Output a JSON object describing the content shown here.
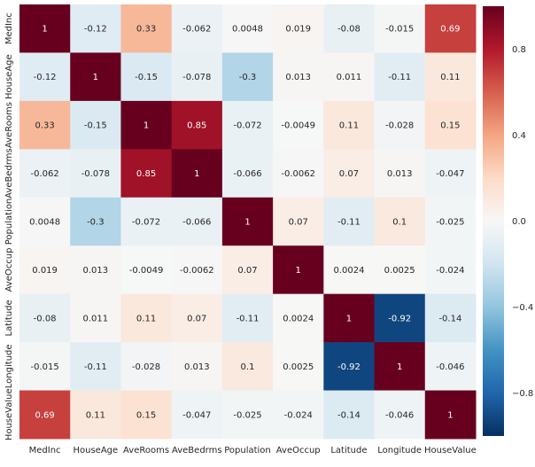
{
  "chart_data": {
    "type": "heatmap",
    "title": "",
    "xlabel": "",
    "ylabel": "",
    "labels": [
      "MedInc",
      "HouseAge",
      "AveRooms",
      "AveBedrms",
      "Population",
      "AveOccup",
      "Latitude",
      "Longitude",
      "HouseValue"
    ],
    "values": [
      [
        1,
        -0.12,
        0.33,
        -0.062,
        0.0048,
        0.019,
        -0.08,
        -0.015,
        0.69
      ],
      [
        -0.12,
        1,
        -0.15,
        -0.078,
        -0.3,
        0.013,
        0.011,
        -0.11,
        0.11
      ],
      [
        0.33,
        -0.15,
        1,
        0.85,
        -0.072,
        -0.0049,
        0.11,
        -0.028,
        0.15
      ],
      [
        -0.062,
        -0.078,
        0.85,
        1,
        -0.066,
        -0.0062,
        0.07,
        0.013,
        -0.047
      ],
      [
        0.0048,
        -0.3,
        -0.072,
        -0.066,
        1,
        0.07,
        -0.11,
        0.1,
        -0.025
      ],
      [
        0.019,
        0.013,
        -0.0049,
        -0.0062,
        0.07,
        1,
        0.0024,
        0.0025,
        -0.024
      ],
      [
        -0.08,
        0.011,
        0.11,
        0.07,
        -0.11,
        0.0024,
        1,
        -0.92,
        -0.14
      ],
      [
        -0.015,
        -0.11,
        -0.028,
        0.013,
        0.1,
        0.0025,
        -0.92,
        1,
        -0.046
      ],
      [
        0.69,
        0.11,
        0.15,
        -0.047,
        -0.025,
        -0.024,
        -0.14,
        -0.046,
        1
      ]
    ],
    "colormap": "RdBu_r",
    "vmin": -1,
    "vmax": 1,
    "colorbar": {
      "ticks": [
        0.8,
        0.4,
        0.0,
        -0.4,
        -0.8
      ],
      "tick_labels": [
        "0.8",
        "0.4",
        "0.0",
        "−0.4",
        "−0.8"
      ],
      "placement": "right"
    },
    "colors": [
      "#053061",
      "#2166ac",
      "#4393c3",
      "#92c5de",
      "#d1e5f0",
      "#f7f7f7",
      "#fddbc7",
      "#f4a582",
      "#d6604d",
      "#b2182b",
      "#67001f"
    ],
    "annotated": true,
    "grid": false
  }
}
